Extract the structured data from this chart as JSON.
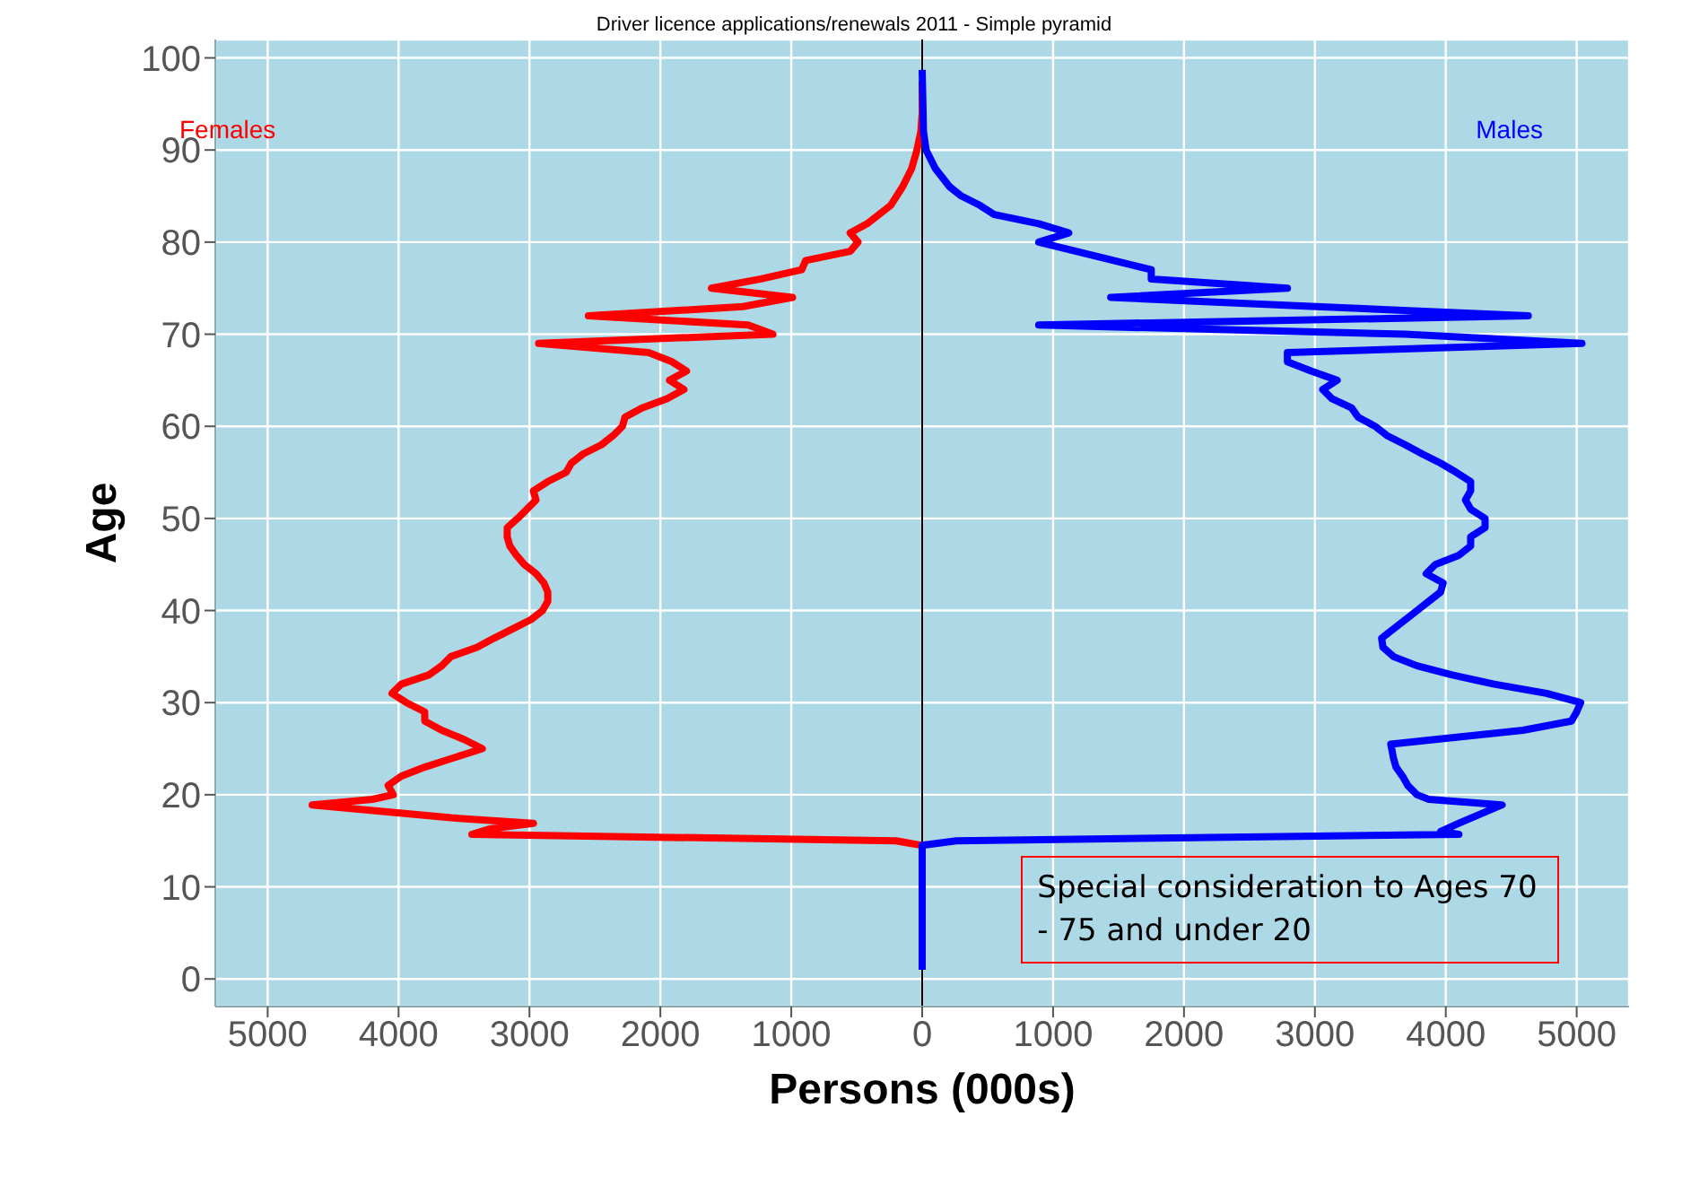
{
  "chart_data": {
    "type": "line",
    "orientation": "horizontal",
    "title": "Driver licence applications/renewals 2011 - Simple pyramid",
    "xlabel": "Persons (000s)",
    "ylabel": "Age",
    "xlim": [
      -5400,
      5400
    ],
    "ylim": [
      -3,
      102
    ],
    "xticks": [
      {
        "value": -5000,
        "label": "5000"
      },
      {
        "value": -4000,
        "label": "4000"
      },
      {
        "value": -3000,
        "label": "3000"
      },
      {
        "value": -2000,
        "label": "2000"
      },
      {
        "value": -1000,
        "label": "1000"
      },
      0,
      1000,
      2000,
      3000,
      4000,
      5000
    ],
    "yticks": [
      0,
      10,
      20,
      30,
      40,
      50,
      60,
      70,
      80,
      90,
      100
    ],
    "grid": true,
    "ref_lines": [
      {
        "axis": "x",
        "value": 0,
        "color": "#000000"
      }
    ],
    "annotations": [
      "Special consideration to Ages 70 - 75 and under 20"
    ],
    "series": [
      {
        "name": "Females",
        "color": "#ff0000",
        "x": [
          1,
          14,
          14.5,
          15,
          15.7,
          16.3,
          16.9,
          17.5,
          18.9,
          19.5,
          20,
          21,
          22,
          23,
          24,
          25,
          26,
          27,
          28,
          29,
          30,
          31,
          32,
          33,
          34,
          35,
          36,
          37,
          38,
          39,
          40,
          41,
          42,
          43,
          44,
          45,
          46,
          47,
          48,
          49,
          50,
          51,
          52,
          53,
          54,
          55,
          56,
          57,
          58,
          59,
          60,
          61,
          62,
          63,
          64,
          65,
          66,
          67,
          68,
          69,
          70,
          71,
          72,
          73,
          74,
          75,
          76,
          77,
          78,
          79,
          80,
          81,
          82,
          83,
          84,
          86,
          88,
          90,
          92,
          94,
          97.5
        ],
        "values": [
          0,
          0,
          0,
          -200,
          -3440,
          -3300,
          -2970,
          -3600,
          -4660,
          -4200,
          -4040,
          -4080,
          -3980,
          -3800,
          -3580,
          -3360,
          -3500,
          -3670,
          -3800,
          -3800,
          -3940,
          -4050,
          -3980,
          -3770,
          -3670,
          -3600,
          -3400,
          -3270,
          -3130,
          -2990,
          -2900,
          -2860,
          -2860,
          -2890,
          -2950,
          -3040,
          -3100,
          -3150,
          -3170,
          -3170,
          -3090,
          -3020,
          -2950,
          -2970,
          -2860,
          -2720,
          -2680,
          -2590,
          -2450,
          -2360,
          -2290,
          -2270,
          -2140,
          -1950,
          -1820,
          -1930,
          -1800,
          -1910,
          -2090,
          -2930,
          -1140,
          -1330,
          -2550,
          -1370,
          -990,
          -1610,
          -1230,
          -920,
          -890,
          -550,
          -490,
          -550,
          -420,
          -330,
          -240,
          -150,
          -80,
          -40,
          -10,
          0,
          0
        ]
      },
      {
        "name": "Males",
        "color": "#0000ff",
        "x": [
          1,
          14,
          14.5,
          15,
          15.7,
          16,
          16.9,
          18.9,
          19.5,
          20,
          21,
          22,
          23,
          24,
          25.5,
          26,
          27,
          28,
          29,
          30,
          31,
          32,
          33,
          34,
          35,
          36,
          37,
          38,
          39,
          40,
          41,
          42,
          43,
          44,
          45,
          46,
          47,
          48,
          49,
          50,
          51,
          52,
          53,
          54,
          55,
          56,
          57,
          58,
          59,
          60,
          61,
          62,
          63,
          64,
          65,
          66,
          67,
          68,
          69,
          70,
          71,
          72,
          73,
          74,
          75,
          76,
          77,
          80,
          81,
          82,
          83,
          84,
          85,
          86,
          88,
          90,
          92,
          98.7
        ],
        "values": [
          0,
          0,
          0,
          260,
          4100,
          3960,
          4100,
          4430,
          3870,
          3780,
          3710,
          3670,
          3620,
          3600,
          3580,
          3920,
          4590,
          4960,
          5000,
          5030,
          4770,
          4370,
          4050,
          3780,
          3600,
          3520,
          3510,
          3600,
          3690,
          3780,
          3870,
          3960,
          3980,
          3850,
          3920,
          4100,
          4190,
          4190,
          4300,
          4300,
          4190,
          4150,
          4190,
          4190,
          4080,
          3960,
          3820,
          3690,
          3550,
          3460,
          3330,
          3280,
          3130,
          3060,
          3170,
          2970,
          2790,
          2790,
          5040,
          3690,
          890,
          4630,
          3010,
          1440,
          2790,
          1750,
          1750,
          890,
          1120,
          890,
          550,
          440,
          300,
          210,
          100,
          30,
          10,
          0
        ]
      }
    ]
  }
}
